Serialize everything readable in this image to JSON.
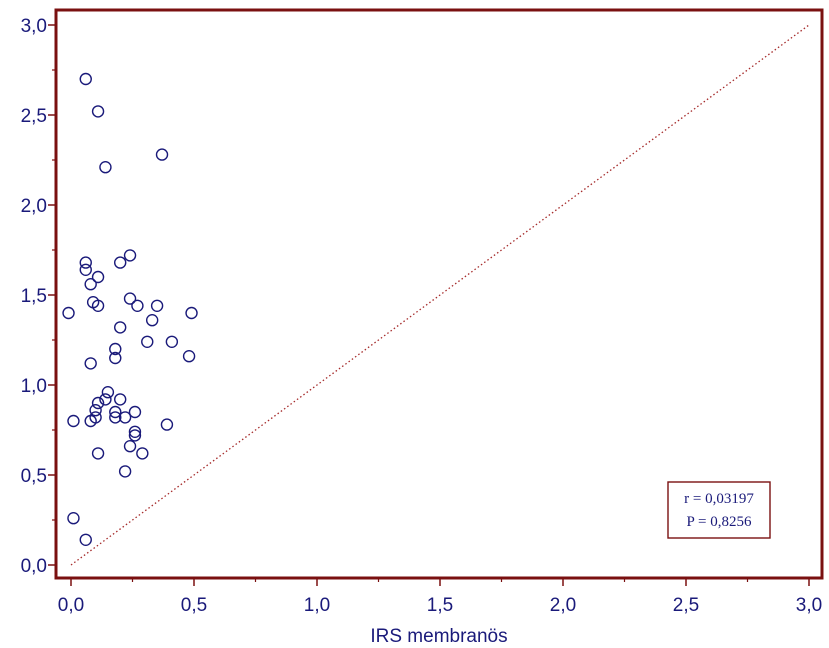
{
  "chart_data": {
    "type": "scatter",
    "title": "",
    "xlabel": "IRS membranös",
    "ylabel": "",
    "xlim": [
      -0.06,
      3.05
    ],
    "ylim": [
      -0.06,
      3.05
    ],
    "x_ticks": [
      "0,0",
      "0,5",
      "1,0",
      "1,5",
      "2,0",
      "2,5",
      "3,0"
    ],
    "y_ticks": [
      "0,0",
      "0,5",
      "1,0",
      "1,5",
      "2,0",
      "2,5",
      "3,0"
    ],
    "reference_line": {
      "kind": "identity",
      "from": [
        0,
        0
      ],
      "to": [
        3,
        3
      ],
      "style": "dotted",
      "color": "#a52a2a"
    },
    "annotation": {
      "line1": "r = 0,03197",
      "line2": "P = 0,8256"
    },
    "grid": false,
    "colors": {
      "axis": "#7a1010",
      "marker": "#1a1a7a",
      "text": "#1a1a7a"
    },
    "series": [
      {
        "marker": "open-circle",
        "points": [
          [
            0.06,
            2.7
          ],
          [
            0.11,
            2.52
          ],
          [
            0.14,
            2.21
          ],
          [
            0.37,
            2.28
          ],
          [
            0.24,
            1.72
          ],
          [
            0.06,
            1.68
          ],
          [
            0.2,
            1.68
          ],
          [
            0.06,
            1.64
          ],
          [
            0.11,
            1.6
          ],
          [
            0.08,
            1.56
          ],
          [
            0.24,
            1.48
          ],
          [
            0.09,
            1.46
          ],
          [
            0.11,
            1.44
          ],
          [
            0.27,
            1.44
          ],
          [
            0.35,
            1.44
          ],
          [
            -0.01,
            1.4
          ],
          [
            0.49,
            1.4
          ],
          [
            0.33,
            1.36
          ],
          [
            0.2,
            1.32
          ],
          [
            0.31,
            1.24
          ],
          [
            0.41,
            1.24
          ],
          [
            0.18,
            1.2
          ],
          [
            0.48,
            1.16
          ],
          [
            0.18,
            1.15
          ],
          [
            0.08,
            1.12
          ],
          [
            0.15,
            0.96
          ],
          [
            0.14,
            0.92
          ],
          [
            0.2,
            0.92
          ],
          [
            0.11,
            0.9
          ],
          [
            0.1,
            0.86
          ],
          [
            0.18,
            0.85
          ],
          [
            0.26,
            0.85
          ],
          [
            0.1,
            0.82
          ],
          [
            0.18,
            0.82
          ],
          [
            0.22,
            0.82
          ],
          [
            0.01,
            0.8
          ],
          [
            0.08,
            0.8
          ],
          [
            0.39,
            0.78
          ],
          [
            0.26,
            0.74
          ],
          [
            0.26,
            0.72
          ],
          [
            0.24,
            0.66
          ],
          [
            0.11,
            0.62
          ],
          [
            0.29,
            0.62
          ],
          [
            0.22,
            0.52
          ],
          [
            0.01,
            0.26
          ],
          [
            0.06,
            0.14
          ]
        ]
      }
    ]
  }
}
